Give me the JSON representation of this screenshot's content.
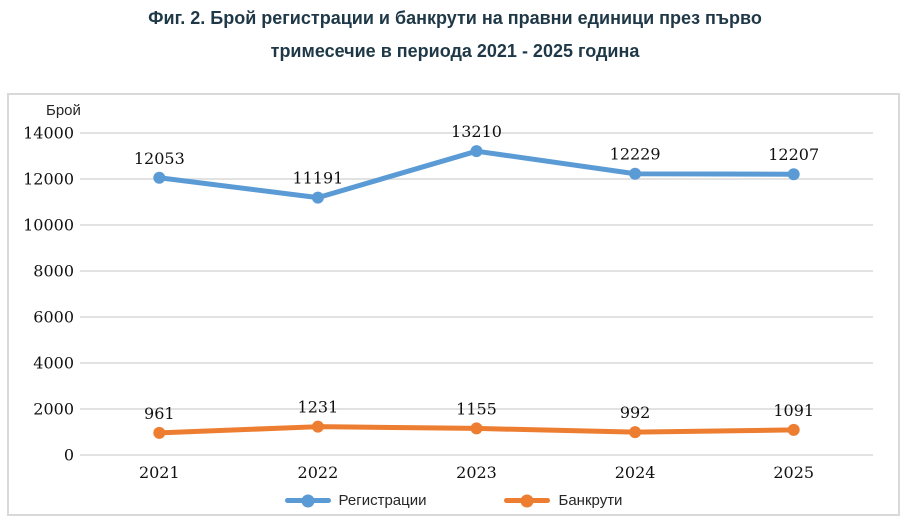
{
  "title": {
    "line1": "Фиг. 2. Брой регистрации и банкрути на правни единици през първо",
    "line2": "тримесечие в периода 2021 - 2025 година"
  },
  "colors": {
    "title_text": "#1F3847",
    "gridline": "#D9D9D9",
    "axis_text": "#262626",
    "box_border": "#D9D9D9",
    "series_blue": "#5B9BD5",
    "series_orange": "#ED7D31"
  },
  "chart_data": {
    "type": "line",
    "title": "Фиг. 2. Брой регистрации и банкрути на правни единици през първо тримесечие в периода 2021 - 2025 година",
    "categories": [
      "2021",
      "2022",
      "2023",
      "2024",
      "2025"
    ],
    "series": [
      {
        "name": "Регистрации",
        "color": "#5B9BD5",
        "values": [
          12053,
          11191,
          13210,
          12229,
          12207
        ]
      },
      {
        "name": "Банкрути",
        "color": "#ED7D31",
        "values": [
          961,
          1231,
          1155,
          992,
          1091
        ]
      }
    ],
    "y_axis": {
      "title": "Брой",
      "min": 0,
      "max": 14000,
      "step": 2000,
      "ticks": [
        0,
        2000,
        4000,
        6000,
        8000,
        10000,
        12000,
        14000
      ]
    },
    "x_axis": {
      "labels": [
        "2021",
        "2022",
        "2023",
        "2024",
        "2025"
      ]
    },
    "grid": true,
    "legend_position": "bottom",
    "data_labels": true
  }
}
